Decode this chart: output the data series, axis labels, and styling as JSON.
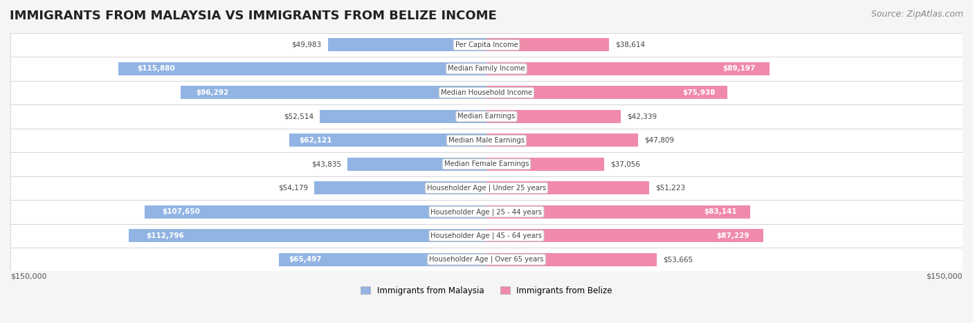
{
  "title": "IMMIGRANTS FROM MALAYSIA VS IMMIGRANTS FROM BELIZE INCOME",
  "source": "Source: ZipAtlas.com",
  "categories": [
    "Per Capita Income",
    "Median Family Income",
    "Median Household Income",
    "Median Earnings",
    "Median Male Earnings",
    "Median Female Earnings",
    "Householder Age | Under 25 years",
    "Householder Age | 25 - 44 years",
    "Householder Age | 45 - 64 years",
    "Householder Age | Over 65 years"
  ],
  "malaysia_values": [
    49983,
    115880,
    96292,
    52514,
    62121,
    43835,
    54179,
    107650,
    112796,
    65497
  ],
  "belize_values": [
    38614,
    89197,
    75938,
    42339,
    47809,
    37056,
    51223,
    83141,
    87229,
    53665
  ],
  "malaysia_color": "#92b4e3",
  "belize_color": "#f08aaa",
  "malaysia_label": "Immigrants from Malaysia",
  "belize_label": "Immigrants from Belize",
  "max_value": 150000,
  "background_color": "#f5f5f5",
  "row_bg_color": "#ffffff",
  "label_box_color": "#ffffff",
  "title_fontsize": 13,
  "source_fontsize": 9,
  "bar_height": 0.55,
  "axis_label_fontsize": 8.5
}
